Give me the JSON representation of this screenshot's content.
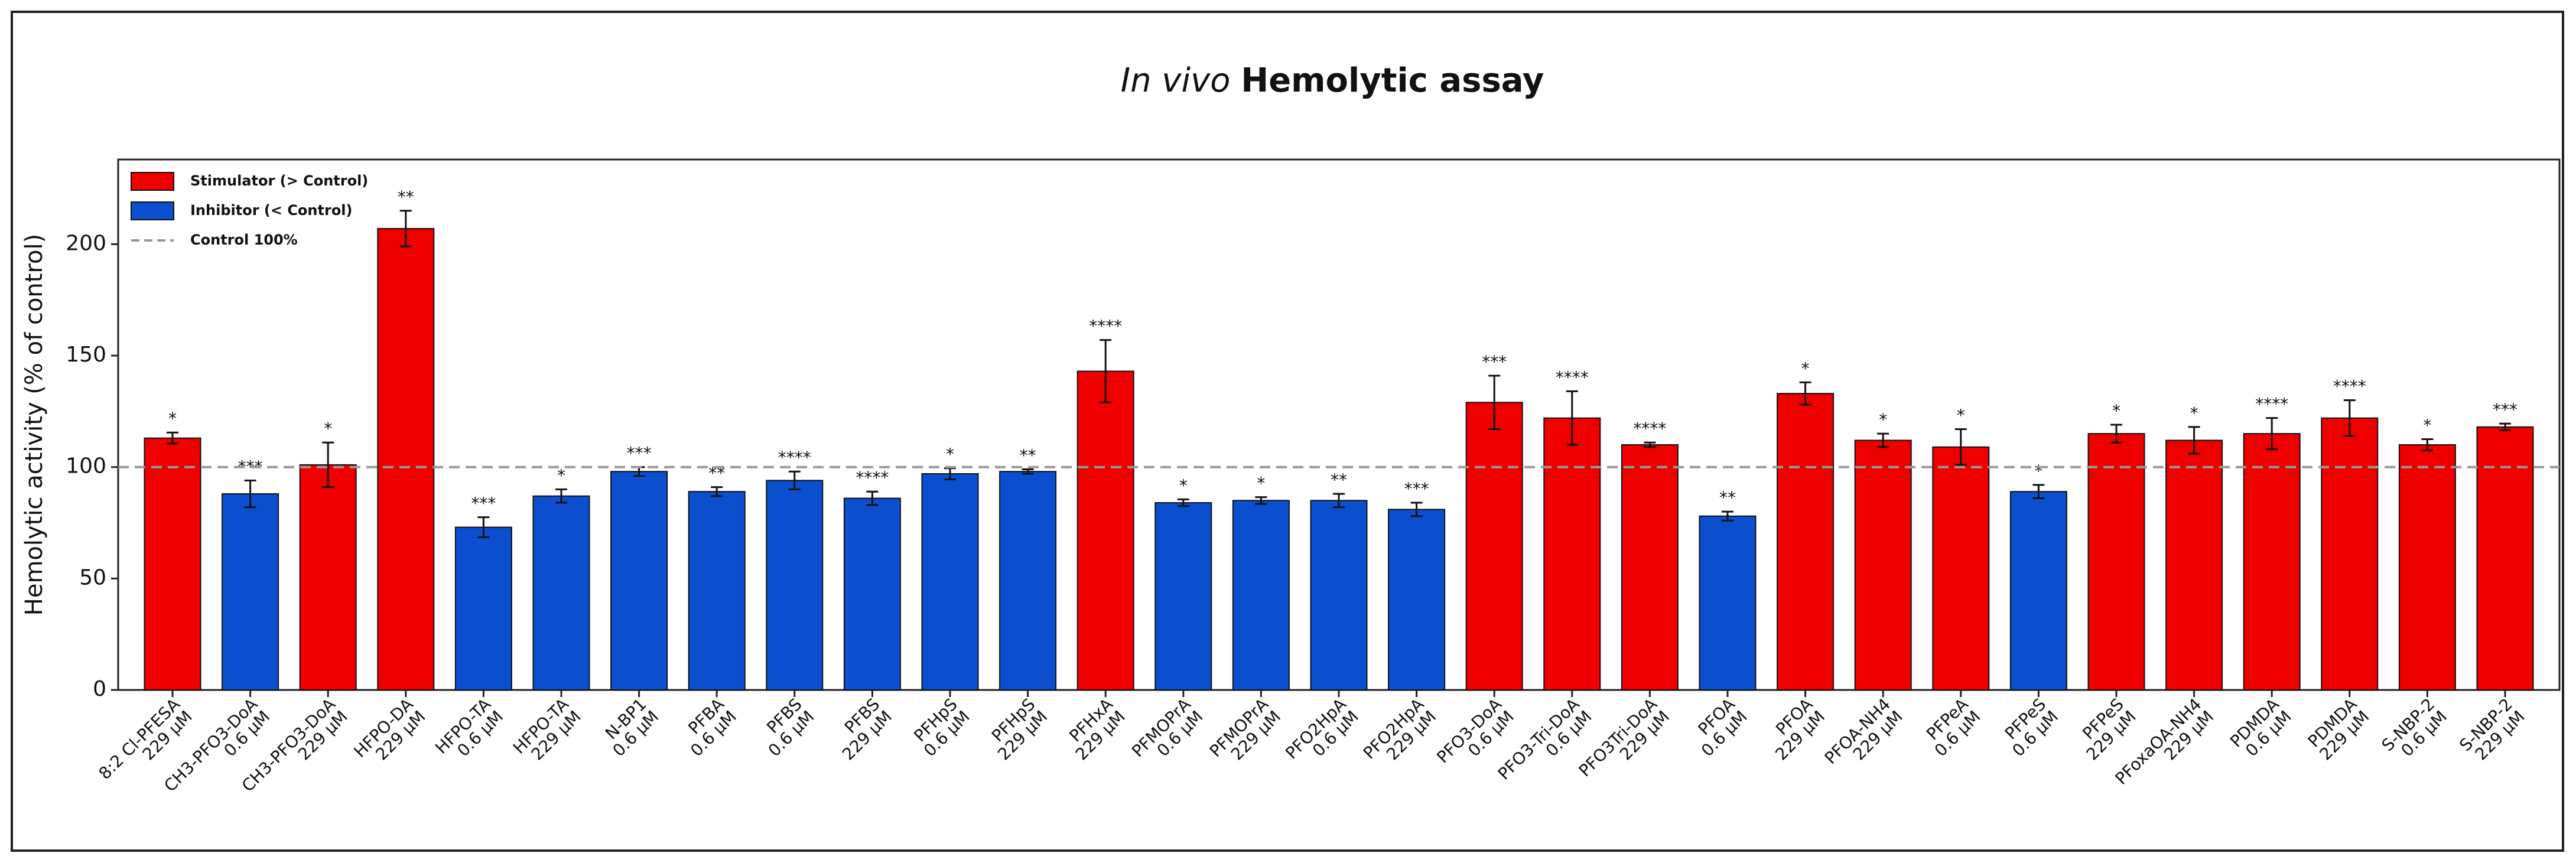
{
  "chart_data": {
    "type": "bar",
    "title_italic": "In vivo",
    "title": "Hemolytic assay",
    "ylabel": "Hemolytic activity (% of control)",
    "categories": [
      "8:2 Cl-PFESA",
      "CH3-PFO3-DoA",
      "CH3-PFO3-DoA",
      "HFPO-DA",
      "HFPO-TA",
      "HFPO-TA",
      "N-BP1",
      "PFBA",
      "PFBS",
      "PFBS",
      "PFHpS",
      "PFHpS",
      "PFHxA",
      "PFMOPrA",
      "PFMOPrA",
      "PFO2HpA",
      "PFO2HpA",
      "PFO3-DoA",
      "PFO3-Tri-DoA",
      "PFO3Tri-DoA",
      "PFOA",
      "PFOA",
      "PFOA-NH4",
      "PFPeA",
      "PFPeS",
      "PFPeS",
      "PFoxaOA-NH4",
      "PDMDA",
      "PDMDA",
      "S-NBP-2",
      "S-NBP-2"
    ],
    "doses": [
      "229 μM",
      "0.6 μM",
      "229 μM",
      "229 μM",
      "0.6 μM",
      "229 μM",
      "0.6 μM",
      "0.6 μM",
      "0.6 μM",
      "229 μM",
      "0.6 μM",
      "229 μM",
      "229 μM",
      "0.6 μM",
      "229 μM",
      "0.6 μM",
      "229 μM",
      "0.6 μM",
      "0.6 μM",
      "229 μM",
      "0.6 μM",
      "229 μM",
      "229 μM",
      "0.6 μM",
      "0.6 μM",
      "229 μM",
      "229 μM",
      "0.6 μM",
      "229 μM",
      "0.6 μM",
      "229 μM"
    ],
    "values": [
      113,
      88,
      101,
      207,
      73,
      87,
      98,
      89,
      94,
      86,
      97,
      98,
      143,
      84,
      85,
      85,
      81,
      129,
      122,
      110,
      78,
      133,
      112,
      109,
      89,
      115,
      112,
      115,
      122,
      110,
      118
    ],
    "errors": [
      2.5,
      6,
      10,
      8,
      4.5,
      3,
      2,
      2,
      4,
      3,
      2.5,
      1,
      14,
      1.5,
      1.5,
      3,
      3,
      12,
      12,
      1,
      2,
      5,
      3,
      8,
      3,
      4,
      6,
      7,
      8,
      2.5,
      1.5
    ],
    "annotations": [
      "*",
      "***",
      "*",
      "**",
      "***",
      "*",
      "***",
      "**",
      "****",
      "****",
      "*",
      "**",
      "****",
      "*",
      "*",
      "**",
      "***",
      "***",
      "****",
      "****",
      "**",
      "*",
      "*",
      "*",
      "*",
      "*",
      "*",
      "****",
      "****",
      "*",
      "***"
    ],
    "bar_colors": [
      "#ee0000",
      "#0b4fcf",
      "#ee0000",
      "#ee0000",
      "#0b4fcf",
      "#0b4fcf",
      "#0b4fcf",
      "#0b4fcf",
      "#0b4fcf",
      "#0b4fcf",
      "#0b4fcf",
      "#0b4fcf",
      "#ee0000",
      "#0b4fcf",
      "#0b4fcf",
      "#0b4fcf",
      "#0b4fcf",
      "#ee0000",
      "#ee0000",
      "#ee0000",
      "#0b4fcf",
      "#ee0000",
      "#ee0000",
      "#ee0000",
      "#0b4fcf",
      "#ee0000",
      "#ee0000",
      "#ee0000",
      "#ee0000",
      "#ee0000",
      "#ee0000"
    ],
    "legend": [
      {
        "name": "Stimulator (> Control)",
        "color": "#ee0000"
      },
      {
        "name": "Inhibitor (< Control)",
        "color": "#0b4fcf"
      },
      {
        "name": "Control 100%",
        "color": "#999999"
      }
    ],
    "legend_position": "upper left",
    "control_value": 100,
    "ylim": [
      0,
      238
    ],
    "yticks": [
      0,
      50,
      100,
      150,
      200
    ]
  }
}
